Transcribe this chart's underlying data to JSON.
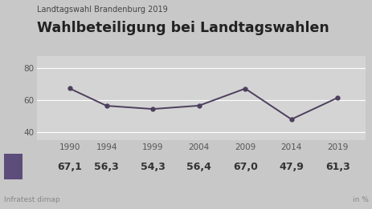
{
  "subtitle": "Landtagswahl Brandenburg 2019",
  "title": "Wahlbeteiligung bei Landtagswahlen",
  "years": [
    1990,
    1994,
    1999,
    2004,
    2009,
    2014,
    2019
  ],
  "values": [
    67.1,
    56.3,
    54.3,
    56.4,
    67.0,
    47.9,
    61.3
  ],
  "line_color": "#4d3f5e",
  "marker_color": "#4d3f5e",
  "bg_color": "#c8c8c8",
  "plot_bg_color": "#d4d4d4",
  "ylim": [
    35,
    87
  ],
  "yticks": [
    40,
    60,
    80
  ],
  "source": "Infratest dimap",
  "unit": "in %",
  "legend_color": "#5c4d7a",
  "value_labels": [
    "67,1",
    "56,3",
    "54,3",
    "56,4",
    "67,0",
    "47,9",
    "61,3"
  ],
  "subtitle_fontsize": 7.0,
  "title_fontsize": 12.5,
  "tick_fontsize": 7.5,
  "value_fontsize": 9.0,
  "source_fontsize": 6.5
}
